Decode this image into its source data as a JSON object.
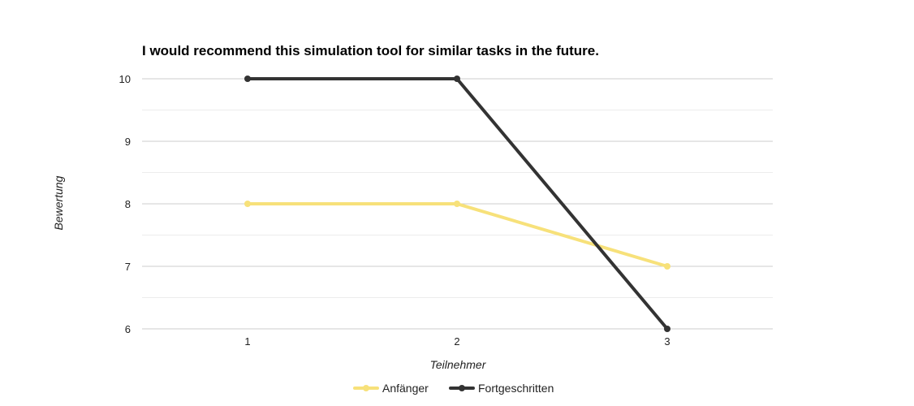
{
  "chart_data": {
    "type": "line",
    "title": "I would recommend this simulation tool for similar tasks in the future.",
    "xlabel": "Teilnehmer",
    "ylabel": "Bewertung",
    "categories": [
      "1",
      "2",
      "3"
    ],
    "ylim": [
      6,
      10
    ],
    "yticks": [
      "6",
      "7",
      "8",
      "9",
      "10"
    ],
    "grid": true,
    "legend_position": "bottom",
    "series": [
      {
        "name": "Anfänger",
        "values": [
          8,
          8,
          7
        ],
        "color": "#f7e17a"
      },
      {
        "name": "Fortgeschritten",
        "values": [
          10,
          10,
          6
        ],
        "color": "#333333"
      }
    ]
  }
}
